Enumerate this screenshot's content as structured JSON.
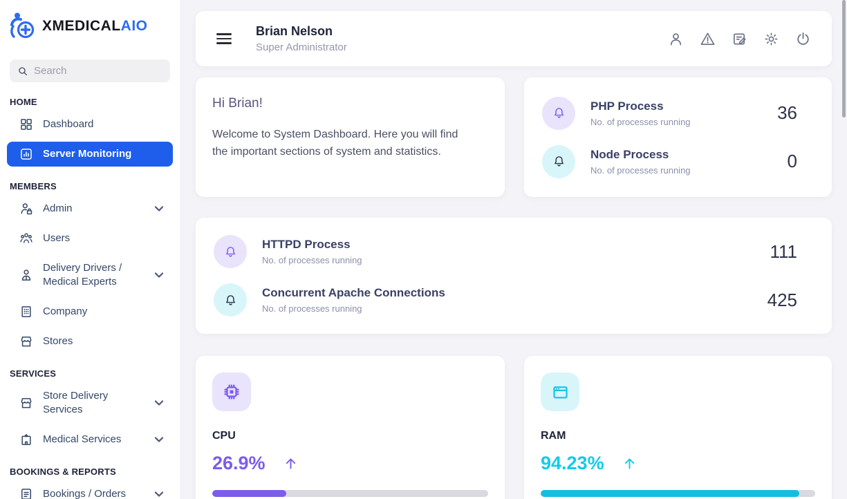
{
  "brand": {
    "name_primary": "XMEDICAL",
    "name_accent": "AIO"
  },
  "search": {
    "placeholder": "Search"
  },
  "sidebar": {
    "sections": [
      {
        "label": "HOME",
        "items": [
          {
            "label": "Dashboard"
          },
          {
            "label": "Server Monitoring"
          }
        ]
      },
      {
        "label": "MEMBERS",
        "items": [
          {
            "label": "Admin"
          },
          {
            "label": "Users"
          },
          {
            "label": "Delivery Drivers / Medical Experts"
          },
          {
            "label": "Company"
          },
          {
            "label": "Stores"
          }
        ]
      },
      {
        "label": "SERVICES",
        "items": [
          {
            "label": "Store Delivery Services"
          },
          {
            "label": "Medical Services"
          }
        ]
      },
      {
        "label": "BOOKINGS & REPORTS",
        "items": [
          {
            "label": "Bookings / Orders"
          }
        ]
      }
    ]
  },
  "header": {
    "user_name": "Brian Nelson",
    "user_role": "Super Administrator",
    "action_icons": [
      "user",
      "alert-triangle",
      "edit-note",
      "settings-gear",
      "power"
    ]
  },
  "welcome": {
    "greeting": "Hi Brian!",
    "message": "Welcome to System Dashboard. Here you will find the important sections of system and statistics."
  },
  "processes": [
    {
      "title": "PHP Process",
      "subtitle": "No. of processes running",
      "value": "36"
    },
    {
      "title": "Node Process",
      "subtitle": "No. of processes running",
      "value": "0"
    },
    {
      "title": "HTTPD Process",
      "subtitle": "No. of processes running",
      "value": "111"
    },
    {
      "title": "Concurrent Apache Connections",
      "subtitle": "No. of processes running",
      "value": "425"
    }
  ],
  "gauges": [
    {
      "label": "CPU",
      "value": "26.9%",
      "percent": 26.9,
      "trend": "up"
    },
    {
      "label": "RAM",
      "value": "94.23%",
      "percent": 94.23,
      "trend": "up"
    }
  ],
  "colors": {
    "active_nav_blue": "#1e5eeb",
    "brand_blue": "#2e6bf0",
    "accent_purple": "#7b5cf0",
    "accent_cyan": "#12cbea",
    "badge_purple_bg": "#e9e3fb",
    "badge_cyan_bg": "#d8f6fa",
    "page_bg": "#f4f4f8"
  }
}
